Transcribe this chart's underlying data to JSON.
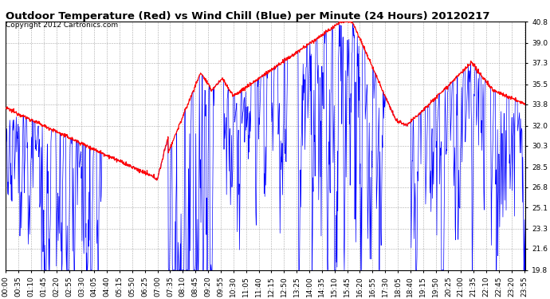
{
  "title": "Outdoor Temperature (Red) vs Wind Chill (Blue) per Minute (24 Hours) 20120217",
  "copyright": "Copyright 2012 Cartronics.com",
  "yticks": [
    19.8,
    21.6,
    23.3,
    25.1,
    26.8,
    28.5,
    30.3,
    32.0,
    33.8,
    35.5,
    37.3,
    39.0,
    40.8
  ],
  "ylim": [
    19.8,
    40.8
  ],
  "bg_color": "#ffffff",
  "grid_color": "#aaaaaa",
  "temp_color": "red",
  "windchill_color": "blue",
  "title_fontsize": 9.5,
  "tick_fontsize": 6.5,
  "copyright_fontsize": 6.5,
  "xtick_labels": [
    "00:00",
    "00:35",
    "01:10",
    "01:45",
    "02:20",
    "02:55",
    "03:30",
    "04:05",
    "04:40",
    "05:15",
    "05:50",
    "06:25",
    "07:00",
    "07:35",
    "08:10",
    "08:45",
    "09:20",
    "09:55",
    "10:30",
    "11:05",
    "11:40",
    "12:15",
    "12:50",
    "13:25",
    "14:00",
    "14:35",
    "15:10",
    "15:45",
    "16:20",
    "16:55",
    "17:30",
    "18:05",
    "18:40",
    "19:15",
    "19:50",
    "20:25",
    "21:00",
    "21:35",
    "22:10",
    "22:45",
    "23:20",
    "23:55"
  ]
}
